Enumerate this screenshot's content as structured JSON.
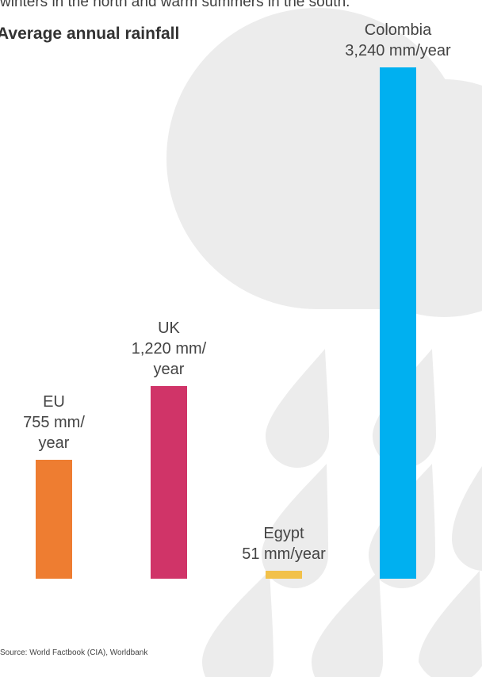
{
  "page": {
    "intro_text": "winters in the north and warm summers in the south.",
    "title": "Average annual rainfall",
    "source": "Source: World Factbook (CIA), Worldbank"
  },
  "chart_data": {
    "type": "bar",
    "title": "Average annual rainfall",
    "unit": "mm/year",
    "ylim": [
      0,
      3240
    ],
    "grid": false,
    "categories": [
      "EU",
      "UK",
      "Egypt",
      "Colombia"
    ],
    "values": [
      755,
      1220,
      51,
      3240
    ],
    "labels": [
      {
        "name": "EU",
        "lines": [
          "EU",
          "755 mm/",
          "year"
        ]
      },
      {
        "name": "UK",
        "lines": [
          "UK",
          "1,220 mm/",
          "year"
        ]
      },
      {
        "name": "Egypt",
        "lines": [
          "Egypt",
          "51 mm/year"
        ]
      },
      {
        "name": "Colombia",
        "lines": [
          "Colombia",
          "3,240 mm/year"
        ]
      }
    ],
    "colors": [
      "#ee7d31",
      "#d03468",
      "#f2c14a",
      "#00b0f0"
    ]
  },
  "background": {
    "cloud_icon": "cloud-icon",
    "drop_icon": "raindrop-icon",
    "shape_color": "#ececec"
  }
}
